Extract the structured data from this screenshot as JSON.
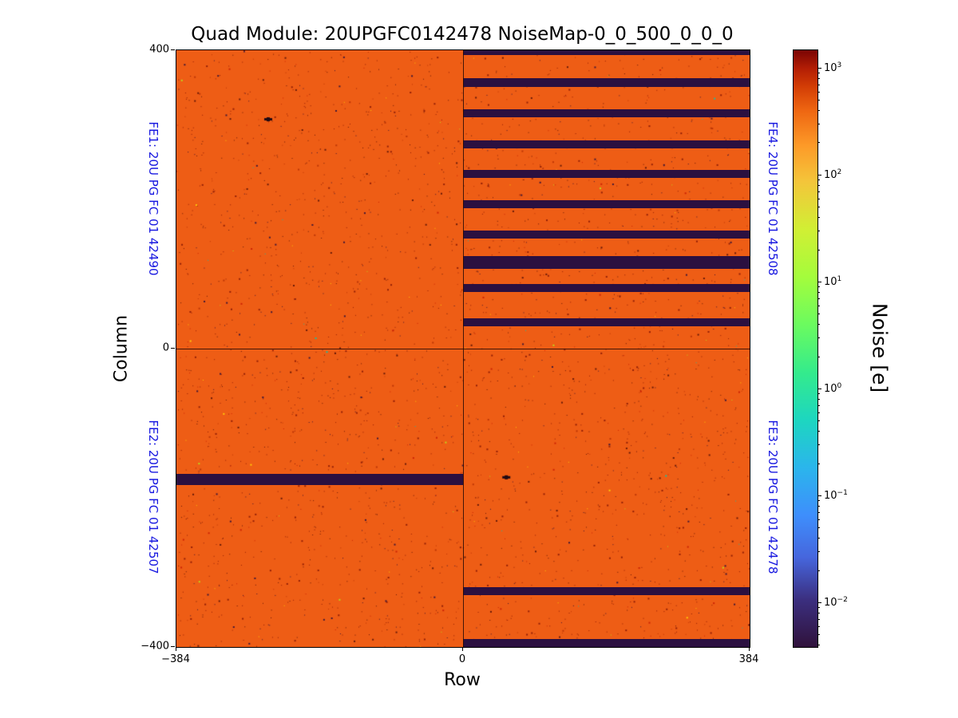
{
  "title": "Quad Module: 20UPGFC0142478 NoiseMap-0_0_500_0_0_0",
  "axes": {
    "xlabel": "Row",
    "ylabel": "Column",
    "x_ticks": [
      {
        "value": -384,
        "label": "−384"
      },
      {
        "value": 0,
        "label": "0"
      },
      {
        "value": 384,
        "label": "384"
      }
    ],
    "y_ticks": [
      {
        "value": 400,
        "label": "400"
      },
      {
        "value": 0,
        "label": "0"
      },
      {
        "value": -400,
        "label": "−400"
      }
    ]
  },
  "fe_labels": {
    "color": "#1717e0",
    "fe1": {
      "text": "FE1: 20U PG FC 01 42490"
    },
    "fe2": {
      "text": "FE2: 20U PG FC 01 42507"
    },
    "fe3": {
      "text": "FE3: 20U PG FC 01 42478"
    },
    "fe4": {
      "text": "FE4: 20U PG FC 01 42508"
    }
  },
  "colorbar": {
    "label": "Noise [e]",
    "colormap": "turbo",
    "scale": {
      "type": "log",
      "top_exp": 3.17,
      "bottom_exp": -2.41
    },
    "ticks": [
      {
        "exp": "3",
        "label": "10^3"
      },
      {
        "exp": "2",
        "label": "10^2"
      },
      {
        "exp": "1",
        "label": "10^1"
      },
      {
        "exp": "0",
        "label": "10^0"
      },
      {
        "exp": "−1",
        "label": "10^-1"
      },
      {
        "exp": "−2",
        "label": "10^-2"
      }
    ]
  },
  "chart_data": {
    "type": "heatmap",
    "title": "Quad Module: 20UPGFC0142478 NoiseMap-0_0_500_0_0_0",
    "xlabel": "Row",
    "ylabel": "Column",
    "x_range": [
      -384,
      384
    ],
    "y_range": [
      -400,
      400
    ],
    "color_scale": {
      "type": "log",
      "label": "Noise [e]",
      "major_ticks": [
        1000,
        100,
        10,
        1,
        0.1,
        0.01
      ],
      "colormap": "turbo"
    },
    "typical_noise_e": 100,
    "background_color": "#ee5d15",
    "dead_color": "#2b1040",
    "quadrants": [
      {
        "name": "FE1",
        "chip": "20U PG FC 01 42490",
        "position": "top-left"
      },
      {
        "name": "FE2",
        "chip": "20U PG FC 01 42507",
        "position": "bottom-left"
      },
      {
        "name": "FE3",
        "chip": "20U PG FC 01 42478",
        "position": "bottom-right"
      },
      {
        "name": "FE4",
        "chip": "20U PG FC 01 42508",
        "position": "top-right"
      }
    ],
    "dead_stripes": [
      {
        "half": "right",
        "col_min": 394,
        "col_max": 400
      },
      {
        "half": "right",
        "col_min": 351,
        "col_max": 363
      },
      {
        "half": "right",
        "col_min": 310,
        "col_max": 321
      },
      {
        "half": "right",
        "col_min": 268,
        "col_max": 279
      },
      {
        "half": "right",
        "col_min": 229,
        "col_max": 240
      },
      {
        "half": "right",
        "col_min": 188,
        "col_max": 199
      },
      {
        "half": "right",
        "col_min": 148,
        "col_max": 158
      },
      {
        "half": "right",
        "col_min": 107,
        "col_max": 124
      },
      {
        "half": "right",
        "col_min": 76,
        "col_max": 87
      },
      {
        "half": "right",
        "col_min": 30,
        "col_max": 41
      },
      {
        "half": "left",
        "col_min": -183,
        "col_max": -168
      },
      {
        "half": "right",
        "col_min": -330,
        "col_max": -320
      },
      {
        "half": "right",
        "col_min": -400,
        "col_max": -389
      }
    ],
    "defects": [
      {
        "row": -261,
        "col": 308
      },
      {
        "row": 58,
        "col": -172
      }
    ]
  }
}
